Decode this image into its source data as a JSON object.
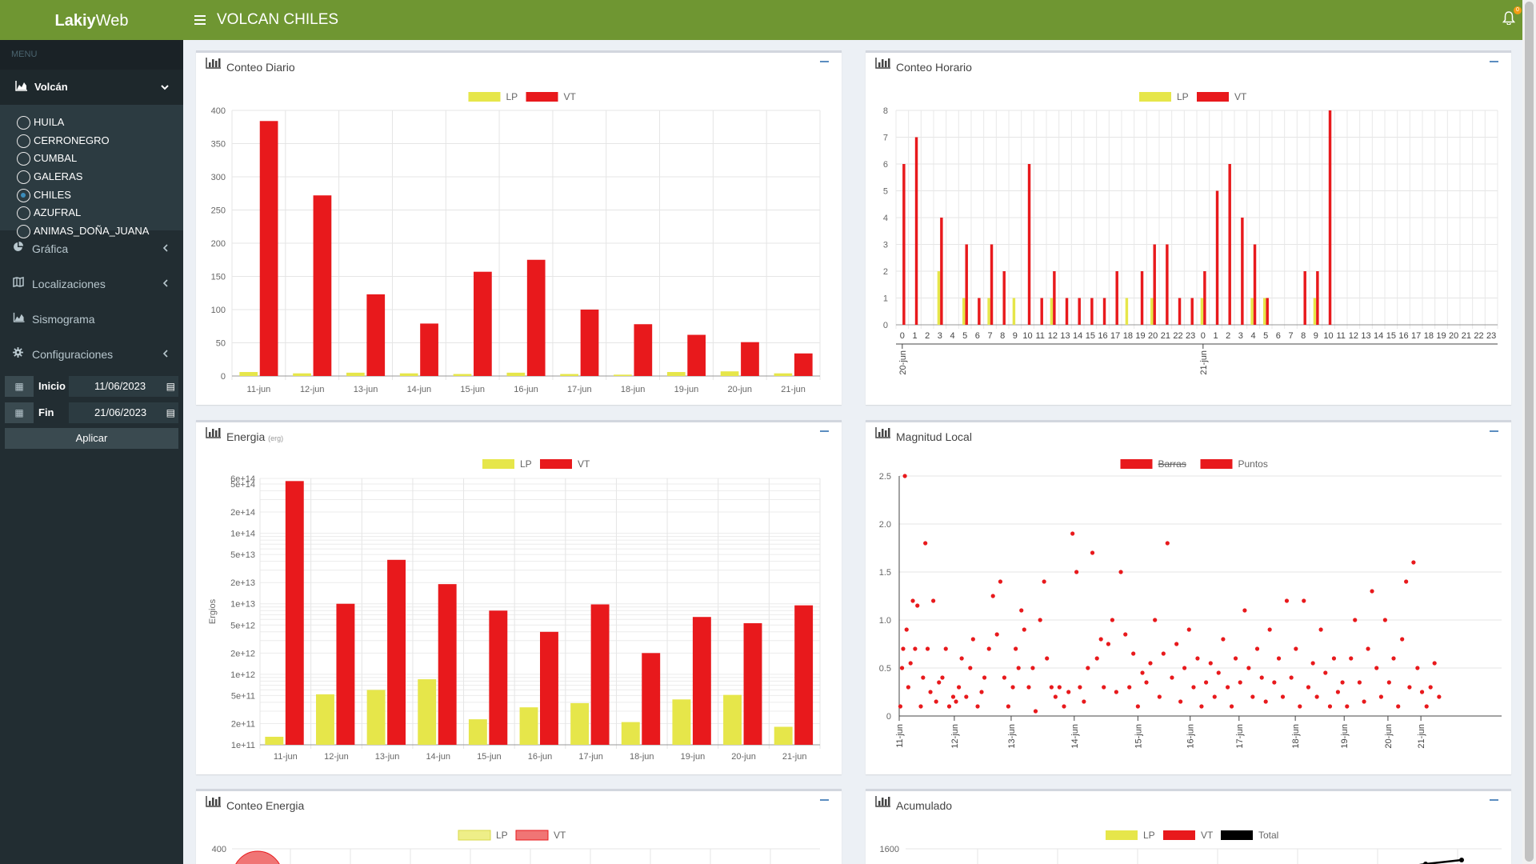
{
  "brand": {
    "part1": "Lakiy",
    "part2": "Web"
  },
  "menu": {
    "header": "MENU"
  },
  "volcan": {
    "label": "Volcán",
    "items": [
      {
        "label": "HUILA",
        "selected": false
      },
      {
        "label": "CERRONEGRO",
        "selected": false
      },
      {
        "label": "CUMBAL",
        "selected": false
      },
      {
        "label": "GALERAS",
        "selected": false
      },
      {
        "label": "CHILES",
        "selected": true
      },
      {
        "label": "AZUFRAL",
        "selected": false
      },
      {
        "label": "ANIMAS_DOÑA_JUANA",
        "selected": false
      }
    ]
  },
  "nav": [
    {
      "label": "Gráfica",
      "icon": "pie-chart-icon"
    },
    {
      "label": "Localizaciones",
      "icon": "map-icon"
    },
    {
      "label": "Sismograma",
      "icon": "area-chart-icon"
    },
    {
      "label": "Configuraciones",
      "icon": "gear-icon"
    }
  ],
  "dates": {
    "inicio_label": "Inicio",
    "inicio_value": "11/06/2023",
    "fin_label": "Fin",
    "fin_value": "21/06/2023",
    "apply_label": "Aplicar"
  },
  "header": {
    "title": "VOLCAN CHILES",
    "notification_count": "0"
  },
  "colors": {
    "lp": "#e6e64a",
    "vt": "#e8191c",
    "header": "#6f9632",
    "sidebar": "#222d32"
  },
  "panels": {
    "conteo_diario": {
      "title": "Conteo Diario"
    },
    "conteo_horario": {
      "title": "Conteo Horario"
    },
    "energia": {
      "title": "Energia",
      "subtitle": "(erg)"
    },
    "magnitud": {
      "title": "Magnitud Local"
    },
    "conteo_energia": {
      "title": "Conteo Energia"
    },
    "acumulado": {
      "title": "Acumulado"
    }
  },
  "chart_data": [
    {
      "id": "conteo_diario",
      "type": "bar",
      "title": "",
      "categories": [
        "11-jun",
        "12-jun",
        "13-jun",
        "14-jun",
        "15-jun",
        "16-jun",
        "17-jun",
        "18-jun",
        "19-jun",
        "20-jun",
        "21-jun"
      ],
      "series": [
        {
          "name": "LP",
          "values": [
            6,
            4,
            5,
            4,
            3,
            5,
            3,
            2,
            6,
            7,
            4
          ]
        },
        {
          "name": "VT",
          "values": [
            384,
            272,
            123,
            79,
            157,
            175,
            100,
            78,
            62,
            51,
            34
          ]
        }
      ],
      "ylim": [
        0,
        400
      ],
      "yticks": [
        0,
        50,
        100,
        150,
        200,
        250,
        300,
        350,
        400
      ],
      "grid": true,
      "legend": "top"
    },
    {
      "id": "conteo_horario",
      "type": "bar",
      "title": "",
      "x": [
        "0",
        "1",
        "2",
        "3",
        "4",
        "5",
        "6",
        "7",
        "8",
        "9",
        "10",
        "11",
        "12",
        "13",
        "14",
        "15",
        "16",
        "17",
        "18",
        "19",
        "20",
        "21",
        "22",
        "23",
        "0",
        "1",
        "2",
        "3",
        "4",
        "5",
        "6",
        "7",
        "8",
        "9",
        "10",
        "11",
        "12",
        "13",
        "14",
        "15",
        "16",
        "17",
        "18",
        "19",
        "20",
        "21",
        "22",
        "23"
      ],
      "day_labels": [
        "20-jun",
        "21-jun"
      ],
      "series": [
        {
          "name": "LP",
          "values": [
            0,
            0,
            0,
            2,
            0,
            1,
            0,
            1,
            0,
            1,
            0,
            0,
            1,
            0,
            0,
            0,
            0,
            0,
            1,
            0,
            1,
            0,
            0,
            0,
            1,
            0,
            0,
            0,
            1,
            1,
            0,
            0,
            0,
            1,
            0,
            0,
            0,
            0,
            0,
            0,
            0,
            0,
            0,
            0,
            0,
            0,
            0,
            0
          ]
        },
        {
          "name": "VT",
          "values": [
            6,
            7,
            0,
            4,
            0,
            3,
            1,
            3,
            2,
            0,
            6,
            1,
            2,
            1,
            1,
            1,
            1,
            2,
            0,
            2,
            3,
            3,
            1,
            1,
            2,
            5,
            6,
            4,
            3,
            1,
            0,
            0,
            2,
            2,
            8,
            0,
            0,
            0,
            0,
            0,
            0,
            0,
            0,
            0,
            0,
            0,
            0,
            0
          ]
        }
      ],
      "ylim": [
        0,
        8
      ],
      "yticks": [
        0,
        1,
        2,
        3,
        4,
        5,
        6,
        7,
        8
      ],
      "grid": true,
      "legend": "top"
    },
    {
      "id": "energia",
      "type": "bar",
      "title": "",
      "scale": "log",
      "ylabel": "Ergios",
      "categories": [
        "11-jun",
        "12-jun",
        "13-jun",
        "14-jun",
        "15-jun",
        "16-jun",
        "17-jun",
        "18-jun",
        "19-jun",
        "20-jun",
        "21-jun"
      ],
      "series": [
        {
          "name": "LP",
          "values": [
            130000000000.0,
            520000000000.0,
            600000000000.0,
            850000000000.0,
            230000000000.0,
            340000000000.0,
            390000000000.0,
            210000000000.0,
            440000000000.0,
            510000000000.0,
            180000000000.0
          ]
        },
        {
          "name": "VT",
          "values": [
            550000000000000.0,
            10000000000000.0,
            42000000000000.0,
            19000000000000.0,
            8000000000000.0,
            4000000000000.0,
            9800000000000.0,
            2000000000000.0,
            6500000000000.0,
            5300000000000.0,
            9500000000000.0
          ]
        }
      ],
      "ylim": [
        100000000000.0,
        600000000000000.0
      ],
      "ytick_labels": [
        "1e+11",
        "2e+11",
        "5e+11",
        "1e+12",
        "2e+12",
        "5e+12",
        "1e+13",
        "2e+13",
        "5e+13",
        "1e+14",
        "2e+14",
        "5e+14",
        "6e+14"
      ],
      "grid": true,
      "legend": "top"
    },
    {
      "id": "magnitud",
      "type": "scatter",
      "title": "",
      "legend_entries": [
        {
          "name": "Barras",
          "hidden": true
        },
        {
          "name": "Puntos",
          "hidden": false
        }
      ],
      "ylim": [
        0,
        2.5
      ],
      "yticks": [
        "0",
        "0.5",
        "1.0",
        "1.5",
        "2.0",
        "2.5"
      ],
      "x_range_days": [
        0,
        10.6
      ],
      "x_labels": [
        "11-jun",
        "12-jun",
        "13-jun",
        "14-jun",
        "15-jun",
        "16-jun",
        "17-jun",
        "18-jun",
        "19-jun",
        "20-jun",
        "21-jun"
      ],
      "x_label_days": [
        0,
        0.97,
        1.97,
        3.08,
        4.2,
        5.12,
        5.98,
        6.97,
        7.83,
        8.6,
        9.18
      ],
      "points": [
        [
          0.02,
          0.1
        ],
        [
          0.05,
          0.5
        ],
        [
          0.07,
          0.7
        ],
        [
          0.1,
          2.5
        ],
        [
          0.13,
          0.9
        ],
        [
          0.16,
          0.3
        ],
        [
          0.2,
          0.55
        ],
        [
          0.24,
          1.2
        ],
        [
          0.28,
          0.7
        ],
        [
          0.32,
          1.15
        ],
        [
          0.38,
          0.1
        ],
        [
          0.42,
          0.4
        ],
        [
          0.46,
          1.8
        ],
        [
          0.5,
          0.7
        ],
        [
          0.55,
          0.25
        ],
        [
          0.6,
          1.2
        ],
        [
          0.65,
          0.15
        ],
        [
          0.7,
          0.35
        ],
        [
          0.76,
          0.4
        ],
        [
          0.82,
          0.7
        ],
        [
          0.88,
          0.1
        ],
        [
          0.95,
          0.2
        ],
        [
          1.0,
          0.15
        ],
        [
          1.05,
          0.3
        ],
        [
          1.1,
          0.6
        ],
        [
          1.18,
          0.2
        ],
        [
          1.25,
          0.5
        ],
        [
          1.3,
          0.8
        ],
        [
          1.38,
          0.1
        ],
        [
          1.45,
          0.25
        ],
        [
          1.5,
          0.4
        ],
        [
          1.58,
          0.7
        ],
        [
          1.65,
          1.25
        ],
        [
          1.72,
          0.85
        ],
        [
          1.78,
          1.4
        ],
        [
          1.85,
          0.4
        ],
        [
          1.92,
          0.1
        ],
        [
          2.0,
          0.3
        ],
        [
          2.05,
          0.7
        ],
        [
          2.1,
          0.5
        ],
        [
          2.15,
          1.1
        ],
        [
          2.2,
          0.9
        ],
        [
          2.28,
          0.3
        ],
        [
          2.35,
          0.5
        ],
        [
          2.4,
          0.05
        ],
        [
          2.48,
          1.0
        ],
        [
          2.55,
          1.4
        ],
        [
          2.6,
          0.6
        ],
        [
          2.68,
          0.3
        ],
        [
          2.75,
          0.2
        ],
        [
          2.82,
          0.3
        ],
        [
          2.9,
          0.1
        ],
        [
          2.98,
          0.25
        ],
        [
          3.05,
          1.9
        ],
        [
          3.12,
          1.5
        ],
        [
          3.18,
          0.3
        ],
        [
          3.25,
          0.15
        ],
        [
          3.32,
          0.5
        ],
        [
          3.4,
          1.7
        ],
        [
          3.48,
          0.6
        ],
        [
          3.55,
          0.8
        ],
        [
          3.6,
          0.3
        ],
        [
          3.68,
          0.75
        ],
        [
          3.75,
          1.0
        ],
        [
          3.82,
          0.25
        ],
        [
          3.9,
          1.5
        ],
        [
          3.98,
          0.85
        ],
        [
          4.05,
          0.3
        ],
        [
          4.12,
          0.65
        ],
        [
          4.2,
          0.1
        ],
        [
          4.28,
          0.45
        ],
        [
          4.35,
          0.35
        ],
        [
          4.42,
          0.55
        ],
        [
          4.5,
          1.0
        ],
        [
          4.58,
          0.2
        ],
        [
          4.65,
          0.65
        ],
        [
          4.72,
          1.8
        ],
        [
          4.8,
          0.4
        ],
        [
          4.88,
          0.75
        ],
        [
          4.95,
          0.15
        ],
        [
          5.02,
          0.5
        ],
        [
          5.1,
          0.9
        ],
        [
          5.18,
          0.3
        ],
        [
          5.25,
          0.6
        ],
        [
          5.32,
          0.1
        ],
        [
          5.4,
          0.35
        ],
        [
          5.48,
          0.55
        ],
        [
          5.55,
          0.2
        ],
        [
          5.62,
          0.45
        ],
        [
          5.7,
          0.8
        ],
        [
          5.78,
          0.3
        ],
        [
          5.85,
          0.1
        ],
        [
          5.92,
          0.6
        ],
        [
          6.0,
          0.35
        ],
        [
          6.08,
          1.1
        ],
        [
          6.15,
          0.5
        ],
        [
          6.22,
          0.2
        ],
        [
          6.3,
          0.7
        ],
        [
          6.38,
          0.4
        ],
        [
          6.45,
          0.15
        ],
        [
          6.52,
          0.9
        ],
        [
          6.6,
          0.35
        ],
        [
          6.68,
          0.6
        ],
        [
          6.75,
          0.2
        ],
        [
          6.82,
          1.2
        ],
        [
          6.9,
          0.4
        ],
        [
          6.98,
          0.7
        ],
        [
          7.05,
          0.1
        ],
        [
          7.12,
          1.2
        ],
        [
          7.2,
          0.3
        ],
        [
          7.28,
          0.55
        ],
        [
          7.35,
          0.2
        ],
        [
          7.42,
          0.9
        ],
        [
          7.5,
          0.45
        ],
        [
          7.58,
          0.1
        ],
        [
          7.65,
          0.6
        ],
        [
          7.72,
          0.25
        ],
        [
          7.8,
          0.35
        ],
        [
          7.88,
          0.1
        ],
        [
          7.95,
          0.6
        ],
        [
          8.02,
          1.0
        ],
        [
          8.1,
          0.35
        ],
        [
          8.18,
          0.15
        ],
        [
          8.25,
          0.7
        ],
        [
          8.32,
          1.3
        ],
        [
          8.4,
          0.5
        ],
        [
          8.48,
          0.2
        ],
        [
          8.55,
          1.0
        ],
        [
          8.62,
          0.35
        ],
        [
          8.7,
          0.6
        ],
        [
          8.78,
          0.1
        ],
        [
          8.85,
          0.8
        ],
        [
          8.92,
          1.4
        ],
        [
          8.98,
          0.3
        ],
        [
          9.05,
          1.6
        ],
        [
          9.12,
          0.5
        ],
        [
          9.2,
          0.25
        ],
        [
          9.28,
          0.1
        ],
        [
          9.35,
          0.3
        ],
        [
          9.42,
          0.55
        ],
        [
          9.5,
          0.2
        ]
      ],
      "grid": true,
      "legend": "top"
    },
    {
      "id": "conteo_energia",
      "type": "scatter",
      "title": "",
      "legend_entries": [
        "LP",
        "VT"
      ],
      "yticks_visible": [
        "400"
      ],
      "grid": true,
      "legend": "top"
    },
    {
      "id": "acumulado",
      "type": "line",
      "title": "",
      "legend_entries": [
        "LP",
        "VT",
        "Total"
      ],
      "series_colors": [
        "#e6e64a",
        "#e8191c",
        "#000000"
      ],
      "yticks_visible": [
        "1600"
      ],
      "grid": true,
      "legend": "top"
    }
  ]
}
